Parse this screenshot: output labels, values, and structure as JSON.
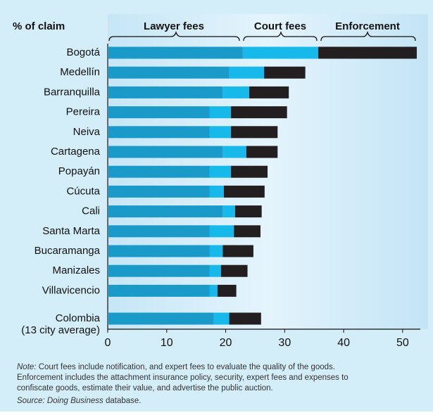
{
  "chart_data": {
    "type": "stacked-barh",
    "axis_title": "% of claim",
    "categories": [
      "Bogotá",
      "Medellín",
      "Barranquilla",
      "Pereira",
      "Neiva",
      "Cartagena",
      "Popayán",
      "Cúcuta",
      "Cali",
      "Santa Marta",
      "Bucaramanga",
      "Manizales",
      "Villavicencio",
      "Colombia"
    ],
    "average_label": "(13 city average)",
    "series": [
      {
        "name": "Lawyer fees",
        "color": "#1a9ac8",
        "values": [
          22.9,
          20.6,
          19.5,
          17.3,
          17.3,
          19.5,
          17.3,
          17.3,
          19.5,
          17.3,
          17.3,
          17.3,
          17.3,
          18.0
        ]
      },
      {
        "name": "Court fees",
        "color": "#17b8ea",
        "values": [
          12.8,
          5.9,
          4.5,
          3.6,
          3.6,
          4.0,
          3.6,
          2.4,
          2.1,
          4.1,
          2.2,
          1.9,
          1.3,
          2.6
        ]
      },
      {
        "name": "Enforcement",
        "color": "#231f20",
        "values": [
          16.7,
          7.0,
          6.7,
          9.5,
          7.9,
          5.3,
          6.2,
          6.9,
          4.5,
          4.5,
          5.2,
          4.5,
          3.2,
          5.4
        ]
      }
    ],
    "xlim": [
      0,
      53
    ],
    "xticks": [
      0,
      10,
      20,
      30,
      40,
      50
    ],
    "note_label": "Note:",
    "note_lines": [
      "Court fees include notification, and expert fees to evaluate the quality of the goods.",
      "Enforcement includes the attachment insurance policy, security, expert fees and expenses to",
      "confiscate goods, estimate their value, and advertise the public auction."
    ],
    "source_label": "Source:",
    "source_title": "Doing Business",
    "source_text": "database."
  }
}
